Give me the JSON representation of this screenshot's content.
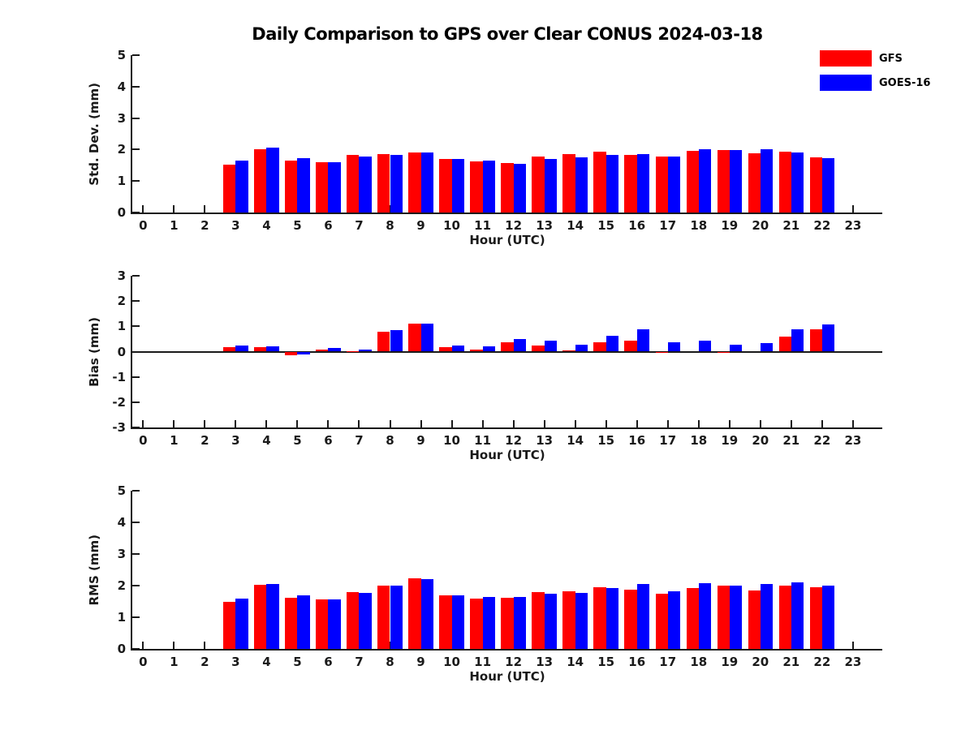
{
  "figure": {
    "title": "Daily Comparison to GPS over Clear CONUS 2024-03-18",
    "colors": {
      "axis": "#1a1a1a",
      "background": "#ffffff",
      "gfs": "#ff0000",
      "goes16": "#0000ff"
    },
    "legend": [
      {
        "label": "GFS",
        "color": "#ff0000"
      },
      {
        "label": "GOES-16",
        "color": "#0000ff"
      }
    ]
  },
  "chart_data": [
    {
      "type": "bar",
      "title": "",
      "ylabel": "Std. Dev. (mm)",
      "xlabel": "Hour (UTC)",
      "ylim": [
        0,
        5
      ],
      "yticks": [
        0,
        1,
        2,
        3,
        4,
        5
      ],
      "grid": false,
      "legend_position": "upper-right-outside",
      "categories": [
        0,
        1,
        2,
        3,
        4,
        5,
        6,
        7,
        8,
        9,
        10,
        11,
        12,
        13,
        14,
        15,
        16,
        17,
        18,
        19,
        20,
        21,
        22,
        23
      ],
      "series": [
        {
          "name": "GFS",
          "color": "#ff0000",
          "values": [
            null,
            null,
            null,
            1.51,
            2.02,
            1.64,
            1.59,
            1.82,
            1.85,
            1.92,
            1.71,
            1.62,
            1.57,
            1.78,
            1.85,
            1.93,
            1.83,
            1.78,
            1.95,
            1.98,
            1.89,
            1.94,
            1.74,
            null
          ]
        },
        {
          "name": "GOES-16",
          "color": "#0000ff",
          "values": [
            null,
            null,
            null,
            1.64,
            2.05,
            1.72,
            1.6,
            1.79,
            1.82,
            1.92,
            1.71,
            1.64,
            1.54,
            1.7,
            1.76,
            1.83,
            1.86,
            1.78,
            2.02,
            1.98,
            2.02,
            1.91,
            1.72,
            null
          ]
        }
      ]
    },
    {
      "type": "bar",
      "title": "",
      "ylabel": "Bias (mm)",
      "xlabel": "Hour (UTC)",
      "ylim": [
        -3,
        3
      ],
      "yticks": [
        -3,
        -2,
        -1,
        0,
        1,
        2,
        3
      ],
      "grid": false,
      "categories": [
        0,
        1,
        2,
        3,
        4,
        5,
        6,
        7,
        8,
        9,
        10,
        11,
        12,
        13,
        14,
        15,
        16,
        17,
        18,
        19,
        20,
        21,
        22,
        23
      ],
      "series": [
        {
          "name": "GFS",
          "color": "#ff0000",
          "values": [
            null,
            null,
            null,
            0.17,
            0.17,
            -0.15,
            0.08,
            0.03,
            0.78,
            1.1,
            0.18,
            0.08,
            0.36,
            0.24,
            0.05,
            0.37,
            0.44,
            -0.03,
            0.0,
            -0.05,
            0.0,
            0.58,
            0.87,
            null
          ]
        },
        {
          "name": "GOES-16",
          "color": "#0000ff",
          "values": [
            null,
            null,
            null,
            0.25,
            0.22,
            -0.11,
            0.15,
            0.08,
            0.84,
            1.12,
            0.23,
            0.21,
            0.5,
            0.43,
            0.26,
            0.64,
            0.87,
            0.37,
            0.43,
            0.27,
            0.35,
            0.88,
            1.08,
            null
          ]
        }
      ]
    },
    {
      "type": "bar",
      "title": "",
      "ylabel": "RMS (mm)",
      "xlabel": "Hour (UTC)",
      "ylim": [
        0,
        5
      ],
      "yticks": [
        0,
        1,
        2,
        3,
        4,
        5
      ],
      "grid": false,
      "categories": [
        0,
        1,
        2,
        3,
        4,
        5,
        6,
        7,
        8,
        9,
        10,
        11,
        12,
        13,
        14,
        15,
        16,
        17,
        18,
        19,
        20,
        21,
        22,
        23
      ],
      "series": [
        {
          "name": "GFS",
          "color": "#ff0000",
          "values": [
            null,
            null,
            null,
            1.5,
            2.02,
            1.61,
            1.57,
            1.8,
            2.0,
            2.24,
            1.7,
            1.6,
            1.61,
            1.8,
            1.83,
            1.96,
            1.86,
            1.75,
            1.93,
            1.99,
            1.85,
            2.01,
            1.94,
            null
          ]
        },
        {
          "name": "GOES-16",
          "color": "#0000ff",
          "values": [
            null,
            null,
            null,
            1.6,
            2.04,
            1.68,
            1.57,
            1.76,
            2.0,
            2.2,
            1.7,
            1.65,
            1.64,
            1.75,
            1.78,
            1.92,
            2.04,
            1.81,
            2.07,
            2.01,
            2.04,
            2.1,
            2.0,
            null
          ]
        }
      ]
    }
  ]
}
